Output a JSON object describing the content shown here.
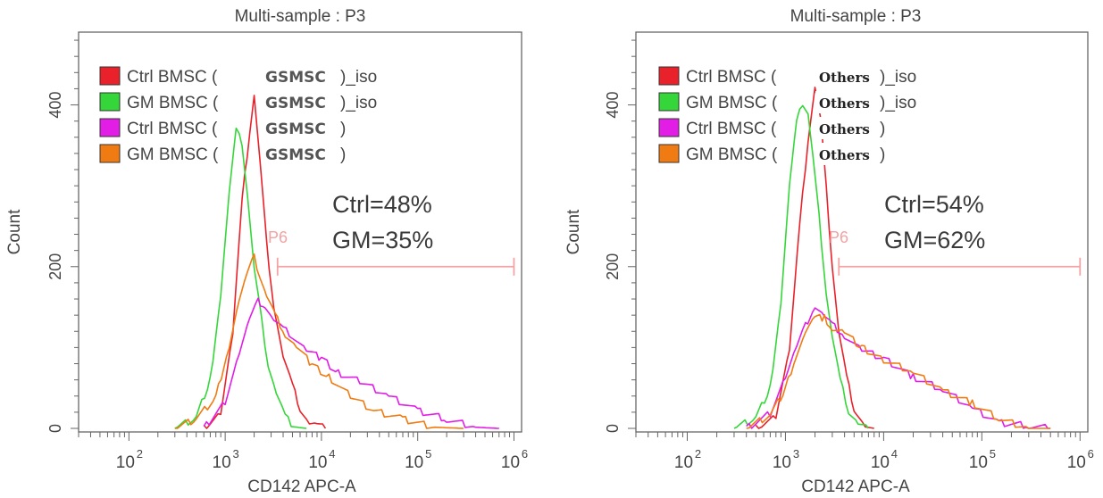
{
  "chart_data": [
    {
      "type": "line",
      "title": "Multi-sample : P3",
      "xlabel": "CD142 APC-A",
      "ylabel": "Count",
      "x_scale": "log",
      "xlim": [
        30,
        1200000
      ],
      "ylim": [
        0,
        490
      ],
      "x_tick_labels": [
        "10",
        "10",
        "10",
        "10",
        "10"
      ],
      "x_tick_exponents": [
        "2",
        "3",
        "4",
        "5",
        "6"
      ],
      "x_tick_values": [
        100,
        1000,
        10000,
        100000,
        1000000
      ],
      "y_tick_labels": [
        "0",
        "200",
        "400"
      ],
      "y_tick_values": [
        0,
        200,
        400
      ],
      "legend_position": "top-left",
      "legend_tag": "GSMSC",
      "gate": {
        "label": "P6",
        "x_range": [
          3500,
          1000000
        ],
        "y": 200
      },
      "annotations": [
        "Ctrl=48%",
        "GM=35%"
      ],
      "series": [
        {
          "name": "Ctrl BMSC (GSMSC)_iso",
          "color": "#e8212a",
          "x": [
            600,
            900,
            1200,
            1500,
            1800,
            2000,
            2300,
            2700,
            3200,
            4000,
            5000,
            6000,
            7500,
            9000,
            11000
          ],
          "y": [
            0,
            20,
            120,
            280,
            370,
            410,
            330,
            230,
            150,
            90,
            50,
            25,
            10,
            3,
            0
          ]
        },
        {
          "name": "GM BMSC (GSMSC)_iso",
          "color": "#35d63a",
          "x": [
            300,
            500,
            700,
            900,
            1100,
            1300,
            1500,
            1700,
            2000,
            2400,
            2800,
            3400,
            4200,
            5200,
            7000
          ],
          "y": [
            0,
            10,
            60,
            170,
            290,
            370,
            350,
            290,
            200,
            130,
            80,
            40,
            15,
            5,
            0
          ]
        },
        {
          "name": "Ctrl BMSC (GSMSC)",
          "color": "#e11de6",
          "x": [
            600,
            1000,
            1400,
            1800,
            2200,
            2600,
            3200,
            4000,
            5000,
            7000,
            10000,
            15000,
            25000,
            50000,
            100000,
            200000,
            400000,
            700000
          ],
          "y": [
            0,
            35,
            90,
            135,
            160,
            150,
            135,
            120,
            115,
            100,
            85,
            70,
            55,
            40,
            25,
            10,
            3,
            0
          ]
        },
        {
          "name": "GM BMSC (GSMSC)",
          "color": "#f07b12",
          "x": [
            300,
            500,
            800,
            1100,
            1400,
            1700,
            2000,
            2300,
            2700,
            3300,
            4200,
            5500,
            8000,
            12000,
            20000,
            35000,
            70000,
            150000,
            300000
          ],
          "y": [
            0,
            10,
            40,
            100,
            160,
            195,
            210,
            190,
            160,
            140,
            120,
            100,
            80,
            60,
            40,
            25,
            10,
            3,
            0
          ]
        }
      ]
    },
    {
      "type": "line",
      "title": "Multi-sample : P3",
      "xlabel": "CD142 APC-A",
      "ylabel": "Count",
      "x_scale": "log",
      "xlim": [
        30,
        1200000
      ],
      "ylim": [
        0,
        490
      ],
      "x_tick_labels": [
        "10",
        "10",
        "10",
        "10",
        "10"
      ],
      "x_tick_exponents": [
        "2",
        "3",
        "4",
        "5",
        "6"
      ],
      "x_tick_values": [
        100,
        1000,
        10000,
        100000,
        1000000
      ],
      "y_tick_labels": [
        "0",
        "200",
        "400"
      ],
      "y_tick_values": [
        0,
        200,
        400
      ],
      "legend_position": "top-left",
      "legend_tag": "Others",
      "gate": {
        "label": "P6",
        "x_range": [
          3500,
          1000000
        ],
        "y": 200
      },
      "annotations": [
        "Ctrl=54%",
        "GM=62%"
      ],
      "series": [
        {
          "name": "Ctrl BMSC (Others)_iso",
          "color": "#e8212a",
          "x": [
            500,
            800,
            1100,
            1400,
            1700,
            2000,
            2300,
            2600,
            3000,
            3500,
            4200,
            5000,
            6500,
            8000
          ],
          "y": [
            0,
            15,
            100,
            250,
            360,
            420,
            380,
            300,
            200,
            120,
            60,
            25,
            5,
            0
          ]
        },
        {
          "name": "GM BMSC (Others)_iso",
          "color": "#35d63a",
          "x": [
            300,
            500,
            700,
            900,
            1100,
            1300,
            1500,
            1700,
            1900,
            2200,
            2600,
            3000,
            3600,
            4400,
            5500,
            7000
          ],
          "y": [
            0,
            10,
            50,
            160,
            300,
            380,
            400,
            390,
            340,
            260,
            170,
            110,
            60,
            25,
            5,
            0
          ]
        },
        {
          "name": "Ctrl BMSC (Others)",
          "color": "#e11de6",
          "x": [
            400,
            700,
            1000,
            1300,
            1600,
            2000,
            2500,
            3000,
            4000,
            6000,
            10000,
            20000,
            40000,
            80000,
            150000,
            300000,
            500000
          ],
          "y": [
            0,
            20,
            60,
            100,
            130,
            150,
            140,
            125,
            115,
            100,
            85,
            65,
            45,
            25,
            10,
            2,
            0
          ]
        },
        {
          "name": "GM BMSC (Others)",
          "color": "#f07b12",
          "x": [
            400,
            700,
            1000,
            1300,
            1600,
            2000,
            2500,
            3000,
            4000,
            6000,
            10000,
            20000,
            40000,
            80000,
            150000,
            300000,
            500000
          ],
          "y": [
            0,
            15,
            50,
            90,
            120,
            140,
            135,
            125,
            115,
            100,
            88,
            68,
            48,
            28,
            12,
            3,
            0
          ]
        }
      ]
    }
  ]
}
